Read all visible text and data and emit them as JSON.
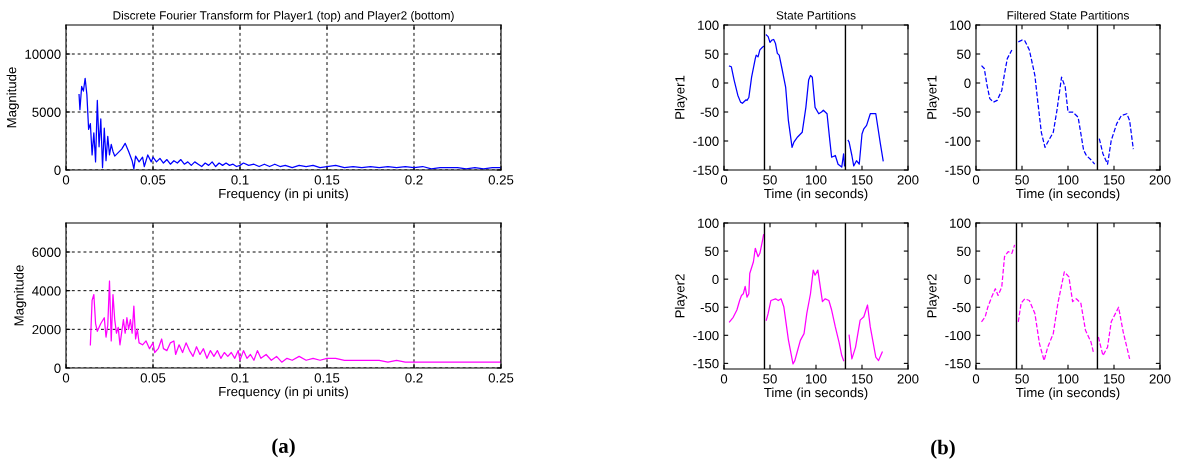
{
  "chart_data": [
    {
      "type": "line",
      "title": "Discrete Fourier Transform for Player1 (top) and Player2 (bottom)",
      "xlabel": "Frequency (in pi units)",
      "ylabel": "Magnitude",
      "xlim": [
        0,
        0.25
      ],
      "ylim": [
        0,
        12500
      ],
      "xticks": [
        0,
        0.05,
        0.1,
        0.15,
        0.2,
        0.25
      ],
      "yticks": [
        0,
        5000,
        10000
      ],
      "grid": true,
      "series": [
        {
          "color": "#0000ff",
          "line_style": "solid",
          "x": [
            0.0075,
            0.008,
            0.009,
            0.01,
            0.011,
            0.012,
            0.013,
            0.014,
            0.015,
            0.016,
            0.017,
            0.018,
            0.019,
            0.02,
            0.021,
            0.022,
            0.023,
            0.024,
            0.025,
            0.026,
            0.027,
            0.028,
            0.03,
            0.032,
            0.034,
            0.036,
            0.038,
            0.039,
            0.04,
            0.042,
            0.044,
            0.045,
            0.047,
            0.049,
            0.05,
            0.052,
            0.054,
            0.056,
            0.058,
            0.06,
            0.062,
            0.064,
            0.066,
            0.068,
            0.07,
            0.072,
            0.074,
            0.076,
            0.078,
            0.08,
            0.082,
            0.084,
            0.086,
            0.088,
            0.09,
            0.092,
            0.094,
            0.096,
            0.098,
            0.1,
            0.102,
            0.105,
            0.108,
            0.111,
            0.114,
            0.117,
            0.12,
            0.123,
            0.126,
            0.13,
            0.134,
            0.138,
            0.142,
            0.146,
            0.15,
            0.155,
            0.16,
            0.165,
            0.17,
            0.175,
            0.18,
            0.185,
            0.19,
            0.195,
            0.2,
            0.205,
            0.21,
            0.215,
            0.22,
            0.225,
            0.23,
            0.235,
            0.24,
            0.245,
            0.25
          ],
          "values": [
            6500,
            5200,
            7200,
            6800,
            7900,
            6500,
            3500,
            4000,
            1300,
            3200,
            700,
            6000,
            2000,
            4400,
            200,
            3600,
            800,
            2900,
            1300,
            2200,
            1600,
            1200,
            1500,
            1800,
            2300,
            1600,
            800,
            100,
            1200,
            700,
            1100,
            300,
            1300,
            700,
            1100,
            700,
            1000,
            600,
            900,
            500,
            800,
            600,
            900,
            500,
            700,
            400,
            700,
            500,
            300,
            600,
            400,
            700,
            300,
            600,
            400,
            600,
            400,
            500,
            300,
            400,
            600,
            400,
            500,
            300,
            500,
            300,
            500,
            300,
            400,
            200,
            400,
            300,
            400,
            200,
            300,
            400,
            200,
            300,
            200,
            300,
            200,
            300,
            200,
            300,
            200,
            300,
            100,
            200,
            200,
            200,
            100,
            200,
            100,
            200,
            200
          ]
        }
      ]
    },
    {
      "type": "line",
      "xlabel": "Frequency (in pi units)",
      "ylabel": "Magnitude",
      "xlim": [
        0,
        0.25
      ],
      "ylim": [
        0,
        7500
      ],
      "xticks": [
        0,
        0.05,
        0.1,
        0.15,
        0.2,
        0.25
      ],
      "yticks": [
        0,
        2000,
        4000,
        6000
      ],
      "grid": true,
      "annotations": [
        "(a)"
      ],
      "series": [
        {
          "color": "#ff00ff",
          "line_style": "solid",
          "x": [
            0.014,
            0.015,
            0.016,
            0.017,
            0.018,
            0.02,
            0.022,
            0.023,
            0.024,
            0.025,
            0.026,
            0.027,
            0.028,
            0.029,
            0.03,
            0.031,
            0.033,
            0.034,
            0.035,
            0.036,
            0.037,
            0.038,
            0.039,
            0.04,
            0.041,
            0.042,
            0.044,
            0.046,
            0.048,
            0.05,
            0.051,
            0.053,
            0.055,
            0.056,
            0.058,
            0.06,
            0.062,
            0.063,
            0.065,
            0.067,
            0.069,
            0.071,
            0.073,
            0.075,
            0.077,
            0.079,
            0.081,
            0.083,
            0.085,
            0.087,
            0.089,
            0.091,
            0.093,
            0.095,
            0.097,
            0.099,
            0.1,
            0.102,
            0.104,
            0.106,
            0.108,
            0.11,
            0.112,
            0.115,
            0.118,
            0.121,
            0.124,
            0.127,
            0.13,
            0.134,
            0.138,
            0.142,
            0.146,
            0.15,
            0.155,
            0.16,
            0.165,
            0.17,
            0.175,
            0.18,
            0.185,
            0.19,
            0.195,
            0.2,
            0.21,
            0.22,
            0.23,
            0.24,
            0.25
          ],
          "values": [
            1200,
            3500,
            3800,
            2300,
            1900,
            2300,
            2600,
            1600,
            2200,
            4500,
            1400,
            3800,
            2500,
            1800,
            2100,
            1200,
            2500,
            1800,
            2600,
            2000,
            2500,
            1800,
            3200,
            1500,
            2000,
            1300,
            1200,
            1400,
            1000,
            1300,
            800,
            1000,
            1500,
            1000,
            900,
            1300,
            1400,
            700,
            1200,
            800,
            1300,
            900,
            600,
            1100,
            700,
            1000,
            500,
            900,
            600,
            900,
            500,
            800,
            600,
            800,
            500,
            900,
            400,
            900,
            500,
            700,
            400,
            900,
            500,
            700,
            400,
            600,
            300,
            500,
            400,
            600,
            400,
            500,
            400,
            500,
            500,
            400,
            400,
            400,
            400,
            400,
            300,
            400,
            300,
            300,
            300,
            300,
            300,
            300,
            300
          ]
        }
      ]
    },
    {
      "type": "line",
      "title": "State Partitions",
      "xlabel": "Time (in seconds)",
      "ylabel": "Player1",
      "xlim": [
        0,
        200
      ],
      "ylim": [
        -150,
        100
      ],
      "xticks": [
        0,
        50,
        100,
        150,
        200
      ],
      "yticks": [
        -150,
        -100,
        -50,
        0,
        50,
        100
      ],
      "ref_lines": [
        {
          "axis": "x",
          "value": 44,
          "color": "#000000"
        },
        {
          "axis": "x",
          "value": 132,
          "color": "#000000"
        }
      ],
      "series": [
        {
          "color": "#0000ff",
          "line_style": "solid",
          "x": [
            6,
            8,
            11,
            15,
            18,
            20,
            24,
            25,
            27,
            30,
            34,
            35,
            37,
            39,
            42,
            43,
            44,
            46,
            48,
            50,
            52,
            54,
            56,
            58,
            60,
            63,
            67,
            70,
            74,
            76,
            80,
            85,
            89,
            92,
            94,
            96,
            99,
            103,
            106,
            108,
            112,
            115,
            117,
            121,
            124,
            128,
            130,
            131,
            132,
            135,
            136,
            139,
            141,
            144,
            147,
            150,
            152,
            155,
            159,
            165,
            170,
            173
          ],
          "values": [
            29,
            28,
            5,
            -21,
            -33,
            -35,
            -29,
            -30,
            -25,
            10,
            42,
            48,
            45,
            57,
            62,
            63,
            null,
            83,
            80,
            70,
            74,
            75,
            68,
            51,
            48,
            25,
            -7,
            -65,
            -111,
            -102,
            -93,
            -85,
            -42,
            5,
            13,
            10,
            -42,
            -53,
            -50,
            -47,
            -53,
            -99,
            -128,
            -125,
            -140,
            -145,
            -122,
            -143,
            null,
            -99,
            -102,
            -125,
            -143,
            -134,
            -140,
            -88,
            -79,
            -73,
            -53,
            -53,
            -105,
            -134
          ]
        }
      ]
    },
    {
      "type": "line",
      "title": "Filtered State Partitions",
      "xlabel": "Time (in seconds)",
      "ylabel": "Player1",
      "xlim": [
        0,
        200
      ],
      "ylim": [
        -150,
        100
      ],
      "xticks": [
        0,
        50,
        100,
        150,
        200
      ],
      "yticks": [
        -150,
        -100,
        -50,
        0,
        50,
        100
      ],
      "ref_lines": [
        {
          "axis": "x",
          "value": 44,
          "color": "#000000"
        },
        {
          "axis": "x",
          "value": 132,
          "color": "#000000"
        }
      ],
      "series": [
        {
          "color": "#0000ff",
          "line_style": "dashed",
          "x": [
            6,
            9,
            12,
            15,
            19,
            23,
            28,
            31,
            34,
            39,
            44,
            46,
            50,
            53,
            58,
            64,
            67,
            71,
            75,
            79,
            84,
            88,
            93,
            97,
            100,
            105,
            111,
            117,
            120,
            126,
            129,
            132,
            134,
            138,
            143,
            147,
            153,
            158,
            164,
            167,
            171
          ],
          "values": [
            30,
            25,
            -4,
            -27,
            -33,
            -30,
            -13,
            16,
            42,
            57,
            null,
            71,
            74,
            73,
            57,
            13,
            -30,
            -85,
            -111,
            -99,
            -85,
            -47,
            10,
            -7,
            -50,
            -50,
            -59,
            -116,
            -125,
            -134,
            -140,
            null,
            -96,
            -122,
            -140,
            -99,
            -70,
            -56,
            -53,
            -65,
            -114
          ]
        }
      ]
    },
    {
      "type": "line",
      "xlabel": "Time (in seconds)",
      "ylabel": "Player2",
      "xlim": [
        0,
        200
      ],
      "ylim": [
        -160,
        100
      ],
      "xticks": [
        0,
        50,
        100,
        150,
        200
      ],
      "yticks": [
        -150,
        -100,
        -50,
        0,
        50,
        100
      ],
      "annotations": [
        "(b)"
      ],
      "ref_lines": [
        {
          "axis": "x",
          "value": 44,
          "color": "#000000"
        },
        {
          "axis": "x",
          "value": 132,
          "color": "#000000"
        }
      ],
      "series": [
        {
          "color": "#ff00ff",
          "line_style": "solid",
          "x": [
            6,
            10,
            14,
            17,
            19,
            21,
            23,
            25,
            27,
            28,
            32,
            34,
            37,
            39,
            42,
            43,
            44,
            46,
            48,
            51,
            56,
            59,
            62,
            65,
            70,
            75,
            77,
            80,
            83,
            87,
            90,
            94,
            97,
            99,
            102,
            107,
            110,
            114,
            117,
            121,
            125,
            128,
            130,
            132,
            136,
            139,
            143,
            148,
            152,
            156,
            159,
            165,
            168,
            172
          ],
          "values": [
            -76,
            -68,
            -55,
            -38,
            -29,
            -26,
            -13,
            -32,
            -26,
            10,
            31,
            55,
            40,
            46,
            70,
            79,
            null,
            -73,
            -61,
            -38,
            -35,
            -38,
            -35,
            -49,
            -108,
            -151,
            -145,
            -127,
            -109,
            -97,
            -61,
            -26,
            16,
            7,
            16,
            -40,
            -35,
            -38,
            -55,
            -85,
            -112,
            -136,
            -145,
            null,
            -100,
            -142,
            -121,
            -73,
            -67,
            -46,
            -85,
            -139,
            -145,
            -130
          ]
        }
      ]
    },
    {
      "type": "line",
      "xlabel": "Time (in seconds)",
      "ylabel": "Player2",
      "xlim": [
        0,
        200
      ],
      "ylim": [
        -160,
        100
      ],
      "xticks": [
        0,
        50,
        100,
        150,
        200
      ],
      "yticks": [
        -150,
        -100,
        -50,
        0,
        50,
        100
      ],
      "ref_lines": [
        {
          "axis": "x",
          "value": 44,
          "color": "#000000"
        },
        {
          "axis": "x",
          "value": 132,
          "color": "#000000"
        }
      ],
      "series": [
        {
          "color": "#ff00ff",
          "line_style": "dashed",
          "x": [
            6,
            10,
            13,
            17,
            21,
            24,
            28,
            31,
            35,
            39,
            42,
            44,
            46,
            49,
            53,
            58,
            64,
            69,
            74,
            78,
            84,
            89,
            96,
            101,
            105,
            109,
            114,
            119,
            125,
            128,
            132,
            133,
            138,
            143,
            147,
            155,
            160,
            167
          ],
          "values": [
            -76,
            -67,
            -49,
            -32,
            -17,
            -29,
            -14,
            40,
            49,
            46,
            61,
            null,
            -76,
            -43,
            -35,
            -38,
            -61,
            -115,
            -145,
            -121,
            -97,
            -43,
            13,
            4,
            -40,
            -35,
            -43,
            -91,
            -112,
            -133,
            null,
            -103,
            -136,
            -121,
            -76,
            -50,
            -94,
            -142
          ]
        }
      ]
    }
  ]
}
